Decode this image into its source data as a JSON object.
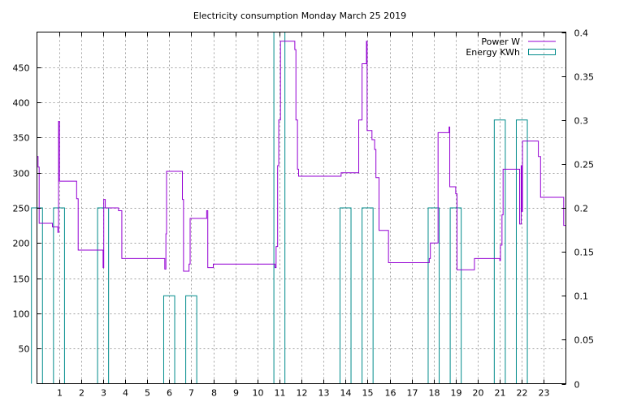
{
  "chart_data": {
    "type": "line",
    "title": "Electricity consumption Monday March 25 2019",
    "xlabel": "",
    "ylabel": "",
    "y2label": "",
    "xlim": [
      0,
      24
    ],
    "ylim": [
      0,
      500
    ],
    "y2lim": [
      0,
      0.4
    ],
    "x_ticks": [
      "1",
      "2",
      "3",
      "4",
      "5",
      "6",
      "7",
      "8",
      "9",
      "10",
      "11",
      "12",
      "13",
      "14",
      "15",
      "16",
      "17",
      "18",
      "19",
      "20",
      "21",
      "22",
      "23"
    ],
    "y_ticks": [
      "50",
      "100",
      "150",
      "200",
      "250",
      "300",
      "350",
      "400",
      "450"
    ],
    "y2_ticks": [
      "0",
      "0.05",
      "0.1",
      "0.15",
      "0.2",
      "0.25",
      "0.3",
      "0.35",
      "0.4"
    ],
    "grid": true,
    "legend_position": "top-right",
    "series": [
      {
        "name": "Power W",
        "axis": "left",
        "style": "steps",
        "color": "#9400d3",
        "points": [
          [
            0.0,
            323
          ],
          [
            0.05,
            323
          ],
          [
            0.05,
            308
          ],
          [
            0.1,
            308
          ],
          [
            0.1,
            228
          ],
          [
            0.7,
            228
          ],
          [
            0.7,
            223
          ],
          [
            0.95,
            223
          ],
          [
            0.95,
            215
          ],
          [
            0.98,
            215
          ],
          [
            0.98,
            373
          ],
          [
            1.02,
            373
          ],
          [
            1.02,
            288
          ],
          [
            1.8,
            288
          ],
          [
            1.8,
            263
          ],
          [
            1.87,
            263
          ],
          [
            1.87,
            190
          ],
          [
            3.0,
            190
          ],
          [
            3.0,
            165
          ],
          [
            3.03,
            165
          ],
          [
            3.03,
            262
          ],
          [
            3.1,
            262
          ],
          [
            3.1,
            250
          ],
          [
            3.7,
            250
          ],
          [
            3.7,
            246
          ],
          [
            3.85,
            246
          ],
          [
            3.85,
            178
          ],
          [
            5.8,
            178
          ],
          [
            5.8,
            163
          ],
          [
            5.85,
            163
          ],
          [
            5.85,
            213
          ],
          [
            5.88,
            213
          ],
          [
            5.88,
            302
          ],
          [
            6.6,
            302
          ],
          [
            6.6,
            262
          ],
          [
            6.65,
            262
          ],
          [
            6.65,
            160
          ],
          [
            6.9,
            160
          ],
          [
            6.9,
            170
          ],
          [
            6.95,
            170
          ],
          [
            6.95,
            235
          ],
          [
            7.7,
            235
          ],
          [
            7.7,
            246
          ],
          [
            7.75,
            246
          ],
          [
            7.75,
            165
          ],
          [
            8.0,
            165
          ],
          [
            8.0,
            170
          ],
          [
            10.8,
            170
          ],
          [
            10.8,
            165
          ],
          [
            10.85,
            165
          ],
          [
            10.85,
            195
          ],
          [
            10.92,
            195
          ],
          [
            10.92,
            310
          ],
          [
            10.97,
            310
          ],
          [
            10.97,
            375
          ],
          [
            11.05,
            375
          ],
          [
            11.05,
            487
          ],
          [
            11.7,
            487
          ],
          [
            11.7,
            475
          ],
          [
            11.75,
            475
          ],
          [
            11.75,
            375
          ],
          [
            11.82,
            375
          ],
          [
            11.82,
            305
          ],
          [
            11.87,
            305
          ],
          [
            11.87,
            295
          ],
          [
            13.8,
            295
          ],
          [
            13.8,
            300
          ],
          [
            14.6,
            300
          ],
          [
            14.6,
            375
          ],
          [
            14.75,
            375
          ],
          [
            14.75,
            455
          ],
          [
            14.95,
            455
          ],
          [
            14.95,
            487
          ],
          [
            14.98,
            487
          ],
          [
            14.98,
            360
          ],
          [
            15.2,
            360
          ],
          [
            15.2,
            347
          ],
          [
            15.32,
            347
          ],
          [
            15.32,
            333
          ],
          [
            15.38,
            333
          ],
          [
            15.38,
            293
          ],
          [
            15.52,
            293
          ],
          [
            15.52,
            218
          ],
          [
            15.95,
            218
          ],
          [
            15.95,
            172
          ],
          [
            17.8,
            172
          ],
          [
            17.8,
            178
          ],
          [
            17.85,
            178
          ],
          [
            17.85,
            200
          ],
          [
            18.2,
            200
          ],
          [
            18.2,
            357
          ],
          [
            18.7,
            357
          ],
          [
            18.7,
            365
          ],
          [
            18.73,
            365
          ],
          [
            18.73,
            280
          ],
          [
            19.0,
            280
          ],
          [
            19.0,
            270
          ],
          [
            19.06,
            270
          ],
          [
            19.06,
            162
          ],
          [
            19.85,
            162
          ],
          [
            19.85,
            178
          ],
          [
            21.0,
            178
          ],
          [
            21.0,
            175
          ],
          [
            21.03,
            175
          ],
          [
            21.03,
            197
          ],
          [
            21.1,
            197
          ],
          [
            21.1,
            240
          ],
          [
            21.15,
            240
          ],
          [
            21.15,
            305
          ],
          [
            21.9,
            305
          ],
          [
            21.9,
            227
          ],
          [
            21.97,
            227
          ],
          [
            21.97,
            310
          ],
          [
            22.0,
            310
          ],
          [
            22.0,
            245
          ],
          [
            22.03,
            245
          ],
          [
            22.03,
            345
          ],
          [
            22.75,
            345
          ],
          [
            22.75,
            323
          ],
          [
            22.85,
            323
          ],
          [
            22.85,
            265
          ],
          [
            23.9,
            265
          ],
          [
            23.9,
            225
          ],
          [
            24.0,
            225
          ]
        ]
      },
      {
        "name": "Energy KWh",
        "axis": "right",
        "style": "boxes",
        "color": "#008b8b",
        "x": [
          0,
          1,
          2,
          3,
          4,
          5,
          6,
          7,
          8,
          9,
          10,
          11,
          12,
          13,
          14,
          15,
          16,
          17,
          18,
          19,
          20,
          21,
          22,
          23
        ],
        "values": [
          0.2,
          0.2,
          0,
          0.2,
          0,
          0,
          0.1,
          0.1,
          0,
          0,
          0,
          0.4,
          0,
          0,
          0.2,
          0.2,
          0,
          0,
          0.2,
          0.2,
          0,
          0.3,
          0.3,
          0
        ]
      }
    ]
  }
}
